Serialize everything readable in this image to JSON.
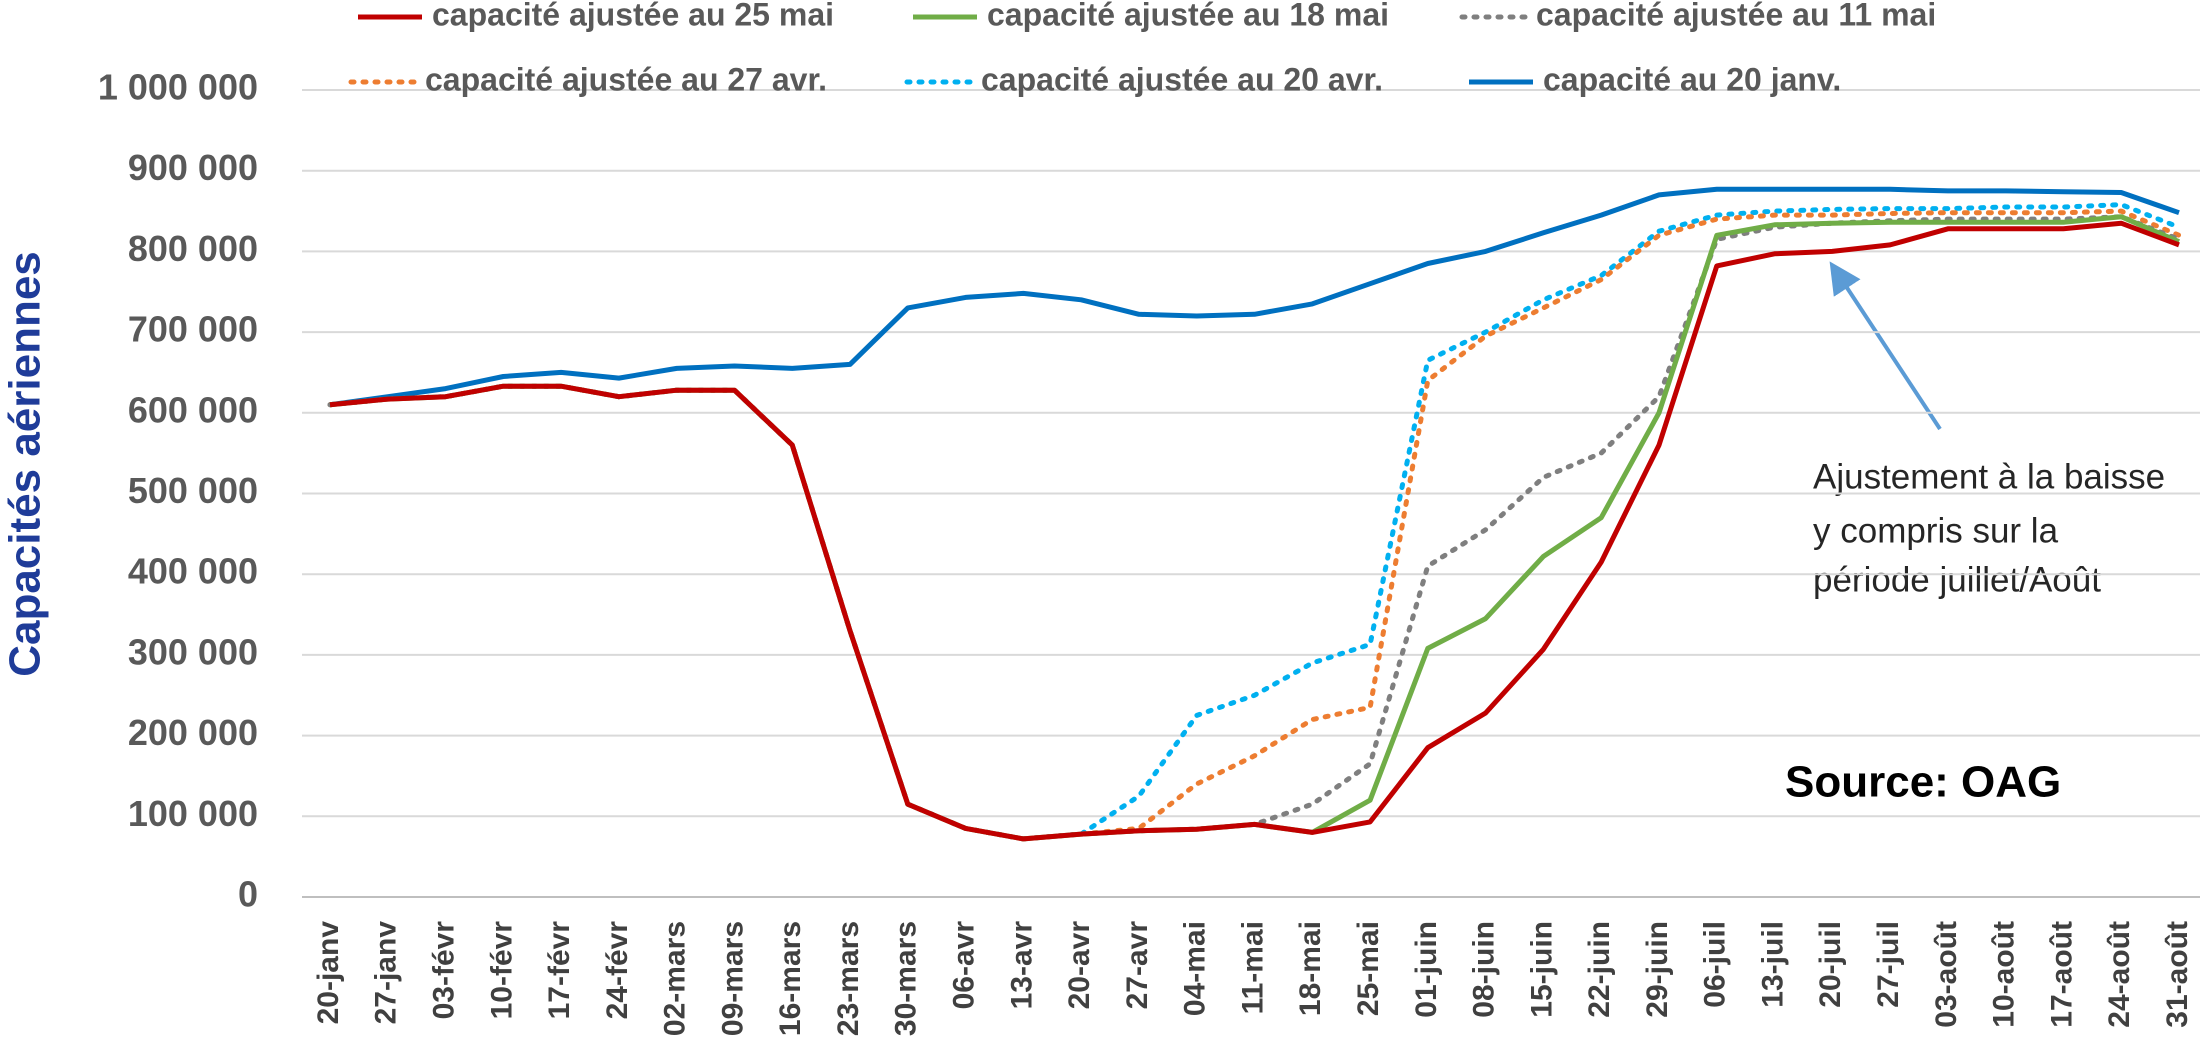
{
  "chart_data": {
    "type": "line",
    "ylabel": "Capacités aériennes",
    "annotation": [
      "Ajustement à la baisse",
      "y compris sur la",
      "période juillet/Août"
    ],
    "source": "Source: OAG",
    "categories": [
      "20-janv",
      "27-janv",
      "03-févr",
      "10-févr",
      "17-févr",
      "24-févr",
      "02-mars",
      "09-mars",
      "16-mars",
      "23-mars",
      "30-mars",
      "06-avr",
      "13-avr",
      "20-avr",
      "27-avr",
      "04-mai",
      "11-mai",
      "18-mai",
      "25-mai",
      "01-juin",
      "08-juin",
      "15-juin",
      "22-juin",
      "29-juin",
      "06-juil",
      "13-juil",
      "20-juil",
      "27-juil",
      "03-août",
      "10-août",
      "17-août",
      "24-août",
      "31-août"
    ],
    "ylim": [
      0,
      1000000
    ],
    "yticks": [
      0,
      {
        "value": 100000,
        "label": "100 000"
      },
      {
        "value": 200000,
        "label": "200 000"
      },
      {
        "value": 300000,
        "label": "300 000"
      },
      {
        "value": 400000,
        "label": "400 000"
      },
      {
        "value": 500000,
        "label": "500 000"
      },
      {
        "value": 600000,
        "label": "600 000"
      },
      {
        "value": 700000,
        "label": "700 000"
      },
      {
        "value": 800000,
        "label": "800 000"
      },
      {
        "value": 900000,
        "label": "900 000"
      },
      {
        "value": 1000000,
        "label": "1 000 000"
      }
    ],
    "grid": true,
    "series": [
      {
        "name": "capacité ajustée au 25 mai",
        "color": "#c00000",
        "style": "solid",
        "values": [
          610000,
          617000,
          620000,
          633000,
          633000,
          620000,
          628000,
          628000,
          560000,
          330000,
          115000,
          85000,
          72000,
          78000,
          82000,
          84000,
          90000,
          80000,
          93000,
          185000,
          228000,
          307000,
          415000,
          560000,
          782000,
          797000,
          800000,
          808000,
          828000,
          828000,
          828000,
          835000,
          808000
        ]
      },
      {
        "name": "capacité ajustée au 18 mai",
        "color": "#70ad47",
        "style": "solid",
        "values": [
          610000,
          617000,
          620000,
          633000,
          633000,
          620000,
          628000,
          628000,
          560000,
          330000,
          115000,
          85000,
          72000,
          78000,
          82000,
          84000,
          90000,
          80000,
          120000,
          308000,
          345000,
          422000,
          470000,
          600000,
          820000,
          833000,
          835000,
          836000,
          836000,
          836000,
          836000,
          843000,
          812000
        ]
      },
      {
        "name": "capacité ajustée au 11 mai",
        "color": "#7f7f7f",
        "style": "dotted",
        "values": [
          610000,
          617000,
          620000,
          633000,
          633000,
          620000,
          628000,
          628000,
          560000,
          330000,
          115000,
          85000,
          72000,
          78000,
          82000,
          84000,
          90000,
          115000,
          165000,
          410000,
          455000,
          520000,
          550000,
          620000,
          815000,
          830000,
          835000,
          838000,
          840000,
          840000,
          840000,
          843000,
          815000
        ]
      },
      {
        "name": "capacité ajustée au 27 avr.",
        "color": "#ed7d31",
        "style": "dotted",
        "values": [
          610000,
          617000,
          620000,
          633000,
          633000,
          620000,
          628000,
          628000,
          560000,
          330000,
          115000,
          85000,
          72000,
          78000,
          85000,
          140000,
          175000,
          220000,
          235000,
          640000,
          695000,
          730000,
          765000,
          820000,
          840000,
          845000,
          845000,
          847000,
          848000,
          848000,
          848000,
          850000,
          820000
        ]
      },
      {
        "name": "capacité ajustée au 20 avr.",
        "color": "#00b0f0",
        "style": "dotted",
        "values": [
          610000,
          617000,
          620000,
          633000,
          633000,
          620000,
          628000,
          628000,
          560000,
          330000,
          115000,
          85000,
          72000,
          78000,
          125000,
          225000,
          250000,
          290000,
          313000,
          665000,
          700000,
          740000,
          770000,
          825000,
          845000,
          850000,
          852000,
          853000,
          853000,
          855000,
          855000,
          858000,
          830000
        ]
      },
      {
        "name": "capacité au 20 janv.",
        "color": "#0070c0",
        "style": "solid",
        "values": [
          610000,
          620000,
          630000,
          645000,
          650000,
          643000,
          655000,
          658000,
          655000,
          660000,
          730000,
          743000,
          748000,
          740000,
          722000,
          720000,
          722000,
          735000,
          760000,
          785000,
          800000,
          823000,
          845000,
          870000,
          877000,
          877000,
          877000,
          877000,
          875000,
          875000,
          874000,
          873000,
          848000
        ]
      }
    ]
  }
}
